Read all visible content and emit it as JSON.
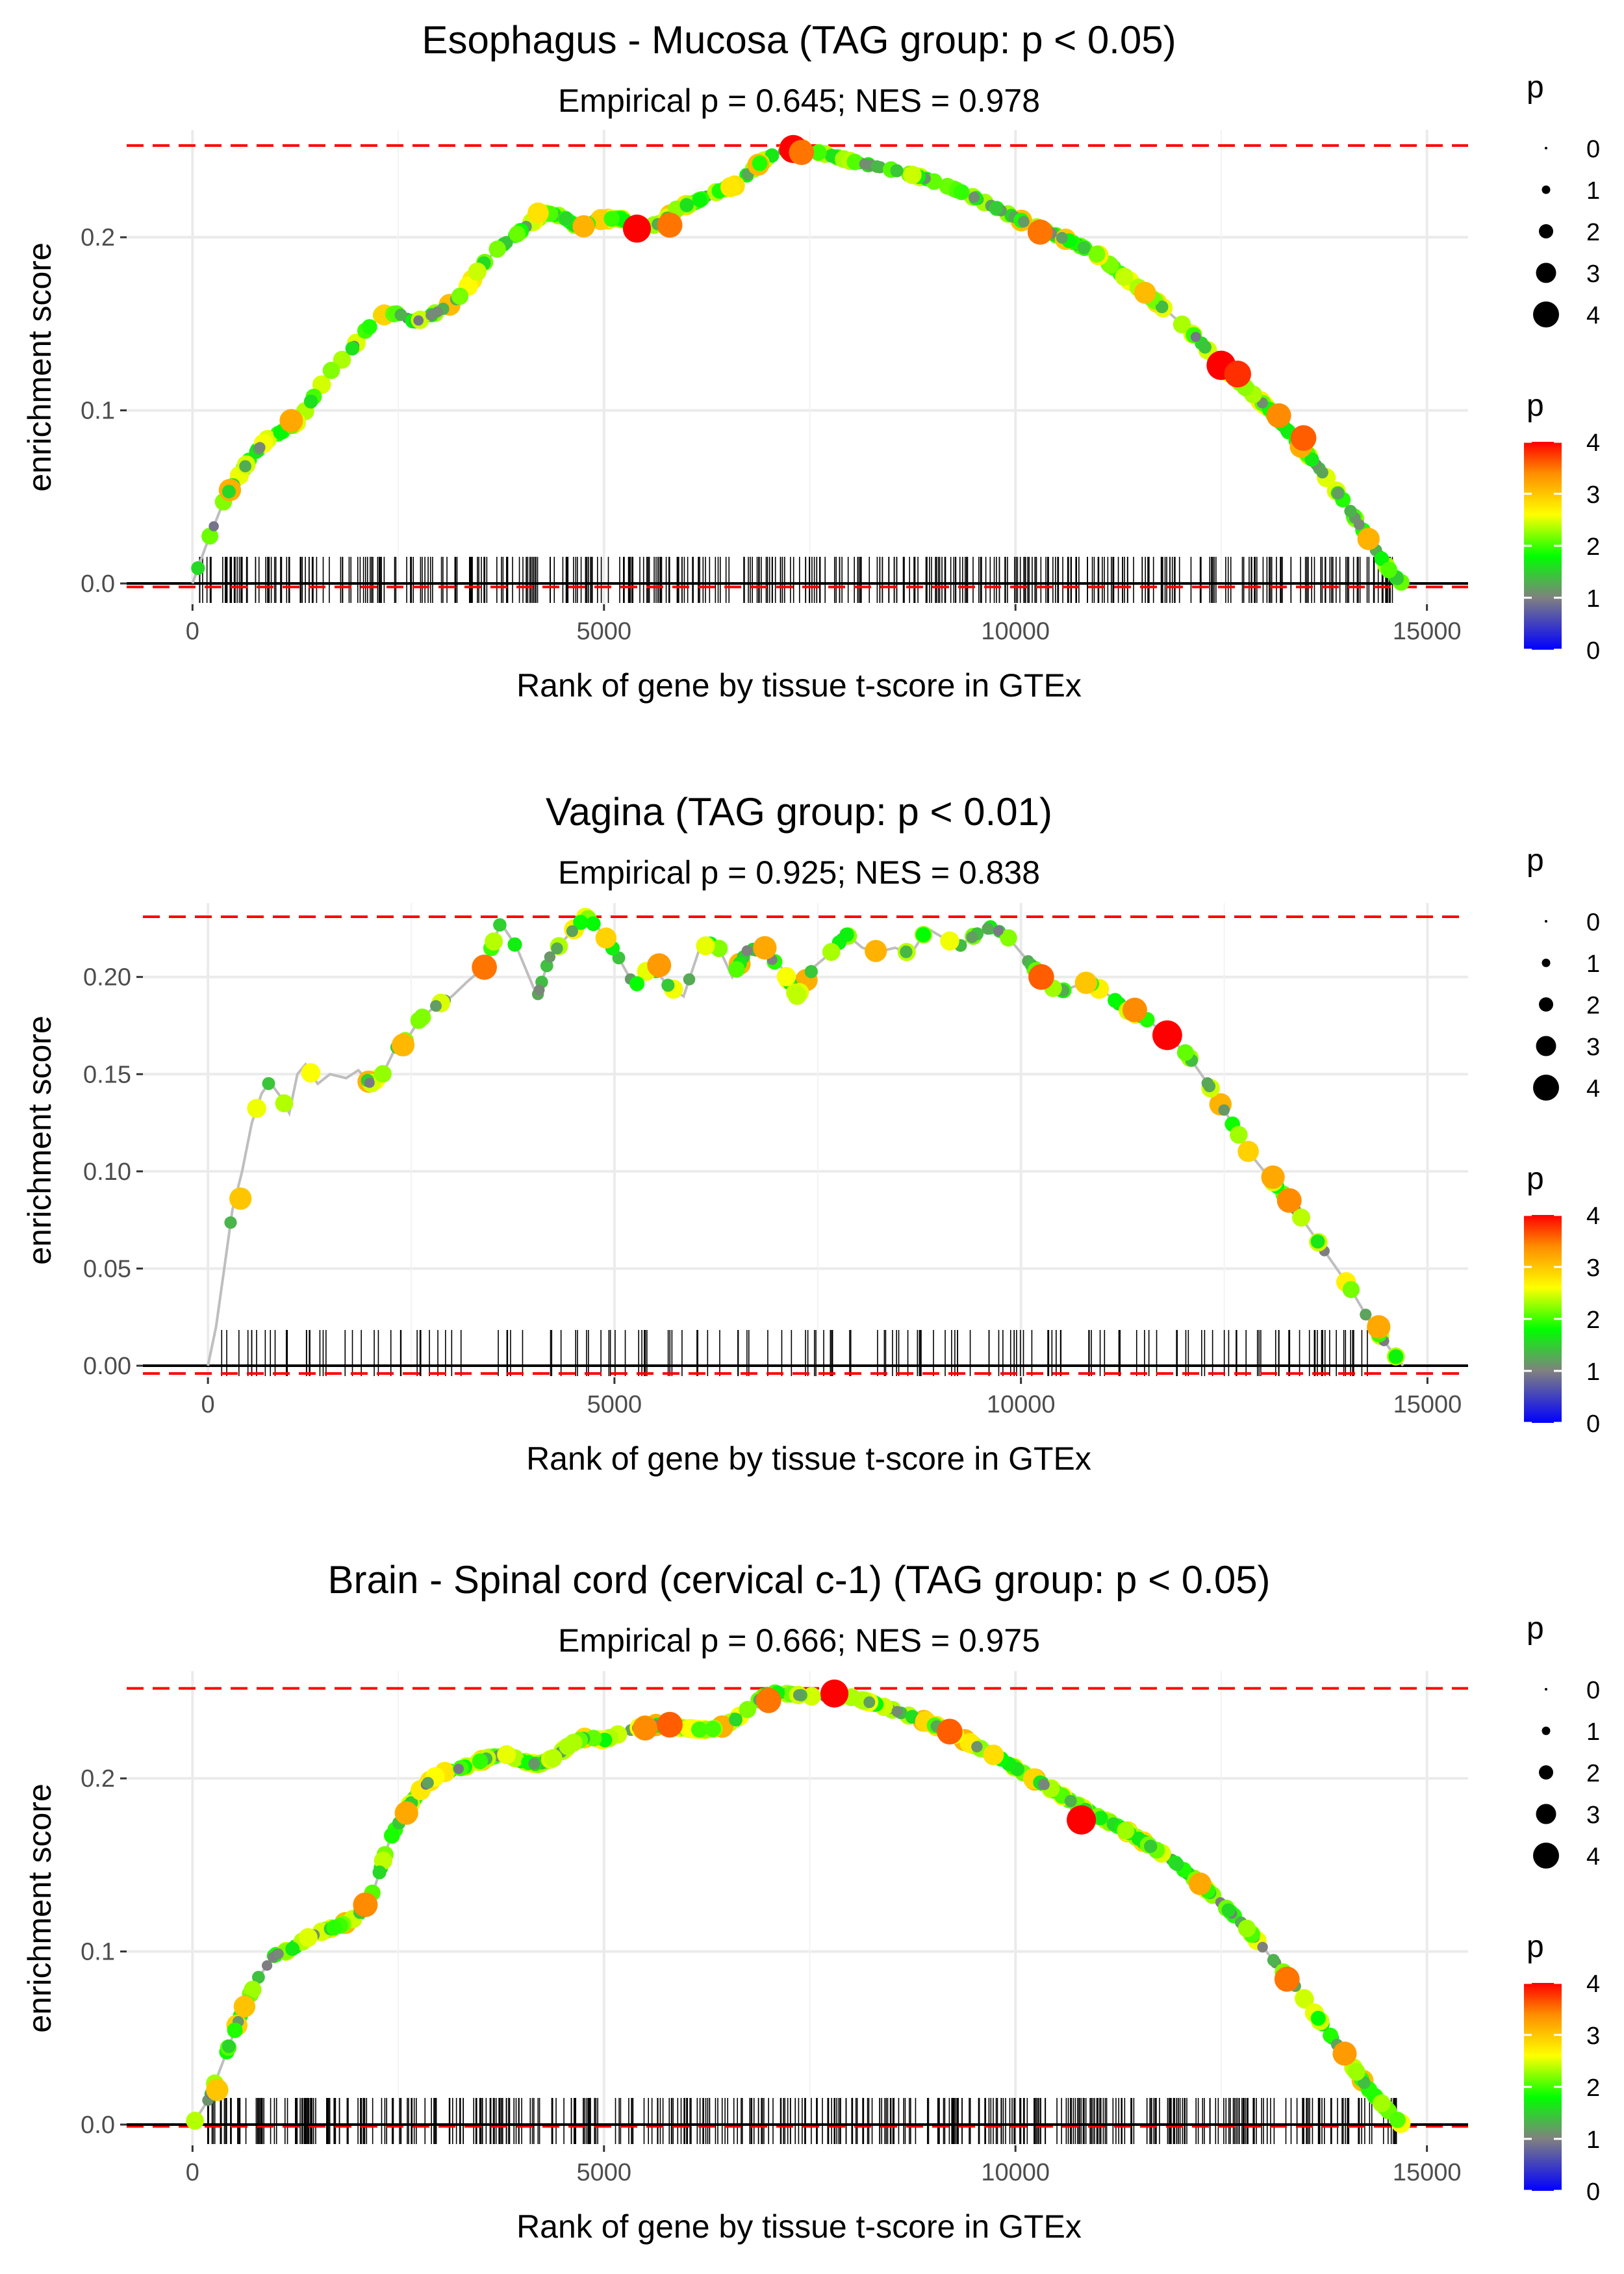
{
  "colors": {
    "grid": "#ebebeb",
    "ref_line": "#ff0000",
    "zero_line": "#000000",
    "curve": "#bebebe",
    "rug": "#000000",
    "gradient": [
      "#0000ff",
      "#808080",
      "#00ff00",
      "#ffff00",
      "#ff8c00",
      "#ff0000"
    ]
  },
  "chart_data": [
    {
      "type": "line",
      "title": "Esophagus - Mucosa (TAG group: p < 0.05)",
      "subtitle": "Empirical p = 0.645; NES = 0.978",
      "xlabel": "Rank of gene by tissue t-score in GTEx",
      "ylabel": "enrichment score",
      "xlim": [
        -800,
        15500
      ],
      "ylim": [
        -0.012,
        0.262
      ],
      "x_ticks": [
        0,
        5000,
        10000,
        15000
      ],
      "x_tick_labels": [
        "0",
        "5000",
        "10000",
        "15000"
      ],
      "y_ticks": [
        0.0,
        0.1,
        0.2
      ],
      "y_tick_labels": [
        "0.0",
        "0.1",
        "0.2"
      ],
      "max_es": 0.253,
      "min_es": -0.002,
      "n_genes": 14700,
      "rug_count": 420,
      "rug_seed": 11,
      "curve": [
        [
          0,
          0.0
        ],
        [
          150,
          0.02
        ],
        [
          400,
          0.05
        ],
        [
          700,
          0.072
        ],
        [
          900,
          0.083
        ],
        [
          1100,
          0.088
        ],
        [
          1300,
          0.094
        ],
        [
          1500,
          0.11
        ],
        [
          1700,
          0.124
        ],
        [
          1900,
          0.133
        ],
        [
          2100,
          0.146
        ],
        [
          2300,
          0.155
        ],
        [
          2500,
          0.156
        ],
        [
          2700,
          0.151
        ],
        [
          2900,
          0.155
        ],
        [
          3100,
          0.16
        ],
        [
          3300,
          0.168
        ],
        [
          3500,
          0.183
        ],
        [
          3700,
          0.193
        ],
        [
          3900,
          0.2
        ],
        [
          4100,
          0.208
        ],
        [
          4300,
          0.214
        ],
        [
          4500,
          0.212
        ],
        [
          4700,
          0.205
        ],
        [
          4900,
          0.21
        ],
        [
          5200,
          0.211
        ],
        [
          5400,
          0.205
        ],
        [
          5700,
          0.208
        ],
        [
          5900,
          0.217
        ],
        [
          6100,
          0.22
        ],
        [
          6300,
          0.225
        ],
        [
          6600,
          0.23
        ],
        [
          6900,
          0.243
        ],
        [
          7100,
          0.249
        ],
        [
          7300,
          0.251
        ],
        [
          7500,
          0.25
        ],
        [
          7700,
          0.248
        ],
        [
          8000,
          0.244
        ],
        [
          8300,
          0.241
        ],
        [
          8600,
          0.238
        ],
        [
          8900,
          0.234
        ],
        [
          9200,
          0.229
        ],
        [
          9500,
          0.223
        ],
        [
          9800,
          0.216
        ],
        [
          10100,
          0.209
        ],
        [
          10400,
          0.203
        ],
        [
          10700,
          0.197
        ],
        [
          11000,
          0.19
        ],
        [
          11300,
          0.178
        ],
        [
          11600,
          0.167
        ],
        [
          11900,
          0.155
        ],
        [
          12200,
          0.142
        ],
        [
          12500,
          0.126
        ],
        [
          12800,
          0.113
        ],
        [
          13100,
          0.1
        ],
        [
          13400,
          0.083
        ],
        [
          13700,
          0.066
        ],
        [
          14000,
          0.047
        ],
        [
          14300,
          0.025
        ],
        [
          14550,
          0.007
        ],
        [
          14700,
          0.0
        ]
      ],
      "highlights": [
        [
          5400,
          0.205,
          4
        ],
        [
          5800,
          0.207,
          3.5
        ],
        [
          7300,
          0.251,
          4
        ],
        [
          7400,
          0.249,
          3.5
        ],
        [
          10300,
          0.203,
          3.5
        ],
        [
          12500,
          0.126,
          4.2
        ],
        [
          12700,
          0.121,
          3.8
        ],
        [
          13200,
          0.097,
          3.4
        ],
        [
          13500,
          0.084,
          3.6
        ],
        [
          1200,
          0.094,
          3.2
        ],
        [
          4200,
          0.214,
          2.8
        ]
      ]
    },
    {
      "type": "line",
      "title": "Vagina (TAG group: p < 0.01)",
      "subtitle": "Empirical p = 0.925; NES = 0.838",
      "xlabel": "Rank of gene by tissue t-score in GTEx",
      "ylabel": "enrichment score",
      "xlim": [
        -800,
        15500
      ],
      "ylim": [
        -0.006,
        0.238
      ],
      "x_ticks": [
        0,
        5000,
        10000,
        15000
      ],
      "x_tick_labels": [
        "0",
        "5000",
        "10000",
        "15000"
      ],
      "y_ticks": [
        0.0,
        0.05,
        0.1,
        0.15,
        0.2
      ],
      "y_tick_labels": [
        "0.00",
        "0.05",
        "0.10",
        "0.15",
        "0.20"
      ],
      "max_es": 0.231,
      "min_es": -0.004,
      "n_genes": 14700,
      "rug_count": 170,
      "rug_seed": 29,
      "curve": [
        [
          0,
          0.0
        ],
        [
          100,
          0.02
        ],
        [
          200,
          0.05
        ],
        [
          300,
          0.08
        ],
        [
          420,
          0.1
        ],
        [
          540,
          0.125
        ],
        [
          660,
          0.14
        ],
        [
          760,
          0.146
        ],
        [
          900,
          0.138
        ],
        [
          1000,
          0.13
        ],
        [
          1100,
          0.15
        ],
        [
          1200,
          0.155
        ],
        [
          1350,
          0.145
        ],
        [
          1500,
          0.15
        ],
        [
          1700,
          0.148
        ],
        [
          1850,
          0.152
        ],
        [
          2000,
          0.145
        ],
        [
          2150,
          0.15
        ],
        [
          2300,
          0.163
        ],
        [
          2450,
          0.168
        ],
        [
          2600,
          0.178
        ],
        [
          2800,
          0.185
        ],
        [
          3000,
          0.19
        ],
        [
          3200,
          0.198
        ],
        [
          3400,
          0.205
        ],
        [
          3600,
          0.228
        ],
        [
          3800,
          0.215
        ],
        [
          4050,
          0.19
        ],
        [
          4200,
          0.21
        ],
        [
          4400,
          0.22
        ],
        [
          4650,
          0.231
        ],
        [
          4850,
          0.223
        ],
        [
          5050,
          0.21
        ],
        [
          5250,
          0.195
        ],
        [
          5450,
          0.206
        ],
        [
          5650,
          0.196
        ],
        [
          5850,
          0.19
        ],
        [
          6050,
          0.215
        ],
        [
          6250,
          0.218
        ],
        [
          6450,
          0.2
        ],
        [
          6650,
          0.215
        ],
        [
          6850,
          0.212
        ],
        [
          7050,
          0.205
        ],
        [
          7250,
          0.19
        ],
        [
          7450,
          0.205
        ],
        [
          7650,
          0.212
        ],
        [
          7850,
          0.222
        ],
        [
          8050,
          0.215
        ],
        [
          8250,
          0.213
        ],
        [
          8450,
          0.215
        ],
        [
          8650,
          0.212
        ],
        [
          8850,
          0.225
        ],
        [
          9050,
          0.22
        ],
        [
          9250,
          0.216
        ],
        [
          9450,
          0.222
        ],
        [
          9650,
          0.226
        ],
        [
          9850,
          0.22
        ],
        [
          10050,
          0.21
        ],
        [
          10250,
          0.2
        ],
        [
          10450,
          0.192
        ],
        [
          10650,
          0.195
        ],
        [
          10850,
          0.197
        ],
        [
          11100,
          0.19
        ],
        [
          11300,
          0.183
        ],
        [
          11550,
          0.178
        ],
        [
          11800,
          0.17
        ],
        [
          12050,
          0.16
        ],
        [
          12300,
          0.145
        ],
        [
          12550,
          0.128
        ],
        [
          12800,
          0.11
        ],
        [
          13050,
          0.097
        ],
        [
          13300,
          0.085
        ],
        [
          13550,
          0.07
        ],
        [
          13800,
          0.055
        ],
        [
          14050,
          0.04
        ],
        [
          14300,
          0.022
        ],
        [
          14550,
          0.008
        ],
        [
          14700,
          0.0
        ]
      ],
      "highlights": [
        [
          3400,
          0.205,
          3.5
        ],
        [
          5550,
          0.206,
          3.3
        ],
        [
          6850,
          0.215,
          3.2
        ],
        [
          10250,
          0.2,
          3.6
        ],
        [
          10800,
          0.197,
          3
        ],
        [
          11400,
          0.183,
          3.4
        ],
        [
          11800,
          0.17,
          4.3
        ],
        [
          13100,
          0.097,
          3.2
        ],
        [
          13300,
          0.085,
          3.4
        ],
        [
          14400,
          0.02,
          3.2
        ],
        [
          400,
          0.086,
          3
        ],
        [
          2400,
          0.165,
          3.1
        ]
      ]
    },
    {
      "type": "line",
      "title": "Brain - Spinal cord (cervical c-1) (TAG group: p < 0.05)",
      "subtitle": "Empirical p = 0.666; NES = 0.975",
      "xlabel": "Rank of gene by tissue t-score in GTEx",
      "ylabel": "enrichment score",
      "xlim": [
        -800,
        15500
      ],
      "ylim": [
        -0.012,
        0.262
      ],
      "x_ticks": [
        0,
        5000,
        10000,
        15000
      ],
      "x_tick_labels": [
        "0",
        "5000",
        "10000",
        "15000"
      ],
      "y_ticks": [
        0.0,
        0.1,
        0.2
      ],
      "y_tick_labels": [
        "0.0",
        "0.1",
        "0.2"
      ],
      "max_es": 0.252,
      "min_es": -0.001,
      "n_genes": 14700,
      "rug_count": 470,
      "rug_seed": 53,
      "curve": [
        [
          0,
          0.0
        ],
        [
          200,
          0.015
        ],
        [
          400,
          0.04
        ],
        [
          600,
          0.065
        ],
        [
          800,
          0.085
        ],
        [
          1000,
          0.098
        ],
        [
          1200,
          0.101
        ],
        [
          1400,
          0.108
        ],
        [
          1600,
          0.112
        ],
        [
          1800,
          0.115
        ],
        [
          2000,
          0.12
        ],
        [
          2200,
          0.135
        ],
        [
          2400,
          0.165
        ],
        [
          2600,
          0.182
        ],
        [
          2800,
          0.195
        ],
        [
          3000,
          0.203
        ],
        [
          3200,
          0.205
        ],
        [
          3400,
          0.208
        ],
        [
          3600,
          0.212
        ],
        [
          3800,
          0.214
        ],
        [
          4000,
          0.21
        ],
        [
          4200,
          0.208
        ],
        [
          4400,
          0.212
        ],
        [
          4600,
          0.22
        ],
        [
          4800,
          0.224
        ],
        [
          5000,
          0.222
        ],
        [
          5200,
          0.226
        ],
        [
          5400,
          0.229
        ],
        [
          5600,
          0.231
        ],
        [
          5800,
          0.23
        ],
        [
          6000,
          0.229
        ],
        [
          6200,
          0.228
        ],
        [
          6400,
          0.229
        ],
        [
          6600,
          0.234
        ],
        [
          6800,
          0.242
        ],
        [
          7000,
          0.25
        ],
        [
          7200,
          0.249
        ],
        [
          7400,
          0.248
        ],
        [
          7600,
          0.247
        ],
        [
          7800,
          0.248
        ],
        [
          8000,
          0.247
        ],
        [
          8300,
          0.243
        ],
        [
          8600,
          0.238
        ],
        [
          8900,
          0.233
        ],
        [
          9200,
          0.227
        ],
        [
          9500,
          0.219
        ],
        [
          9800,
          0.212
        ],
        [
          10100,
          0.203
        ],
        [
          10400,
          0.195
        ],
        [
          10700,
          0.186
        ],
        [
          11000,
          0.178
        ],
        [
          11300,
          0.171
        ],
        [
          11600,
          0.162
        ],
        [
          11900,
          0.153
        ],
        [
          12200,
          0.141
        ],
        [
          12500,
          0.128
        ],
        [
          12800,
          0.114
        ],
        [
          13100,
          0.097
        ],
        [
          13400,
          0.08
        ],
        [
          13700,
          0.06
        ],
        [
          14000,
          0.04
        ],
        [
          14300,
          0.02
        ],
        [
          14550,
          0.007
        ],
        [
          14700,
          0.0
        ]
      ],
      "highlights": [
        [
          2100,
          0.127,
          3.4
        ],
        [
          2600,
          0.18,
          3.2
        ],
        [
          5500,
          0.229,
          3.4
        ],
        [
          5800,
          0.231,
          3.6
        ],
        [
          7000,
          0.245,
          3.5
        ],
        [
          7800,
          0.249,
          4
        ],
        [
          9200,
          0.227,
          3.6
        ],
        [
          10800,
          0.176,
          4.2
        ],
        [
          13300,
          0.084,
          3.5
        ],
        [
          14000,
          0.041,
          3.3
        ],
        [
          300,
          0.02,
          3
        ]
      ]
    }
  ],
  "legends": [
    {
      "size_title": "p",
      "size_items": [
        {
          "label": "0",
          "value": 0
        },
        {
          "label": "1",
          "value": 1
        },
        {
          "label": "2",
          "value": 2
        },
        {
          "label": "3",
          "value": 3
        },
        {
          "label": "4",
          "value": 4
        }
      ],
      "color_title": "p",
      "color_ticks": [
        {
          "label": "4",
          "value": 4
        },
        {
          "label": "3",
          "value": 3
        },
        {
          "label": "2",
          "value": 2
        },
        {
          "label": "1",
          "value": 1
        },
        {
          "label": "0",
          "value": 0
        }
      ]
    },
    {
      "size_title": "p",
      "size_items": [
        {
          "label": "0",
          "value": 0
        },
        {
          "label": "1",
          "value": 1
        },
        {
          "label": "2",
          "value": 2
        },
        {
          "label": "3",
          "value": 3
        },
        {
          "label": "4",
          "value": 4
        }
      ],
      "color_title": "p",
      "color_ticks": [
        {
          "label": "4",
          "value": 4
        },
        {
          "label": "3",
          "value": 3
        },
        {
          "label": "2",
          "value": 2
        },
        {
          "label": "1",
          "value": 1
        },
        {
          "label": "0",
          "value": 0
        }
      ]
    },
    {
      "size_title": "p",
      "size_items": [
        {
          "label": "0",
          "value": 0
        },
        {
          "label": "1",
          "value": 1
        },
        {
          "label": "2",
          "value": 2
        },
        {
          "label": "3",
          "value": 3
        },
        {
          "label": "4",
          "value": 4
        }
      ],
      "color_title": "p",
      "color_ticks": [
        {
          "label": "4",
          "value": 4
        },
        {
          "label": "3",
          "value": 3
        },
        {
          "label": "2",
          "value": 2
        },
        {
          "label": "1",
          "value": 1
        },
        {
          "label": "0",
          "value": 0
        }
      ]
    }
  ]
}
